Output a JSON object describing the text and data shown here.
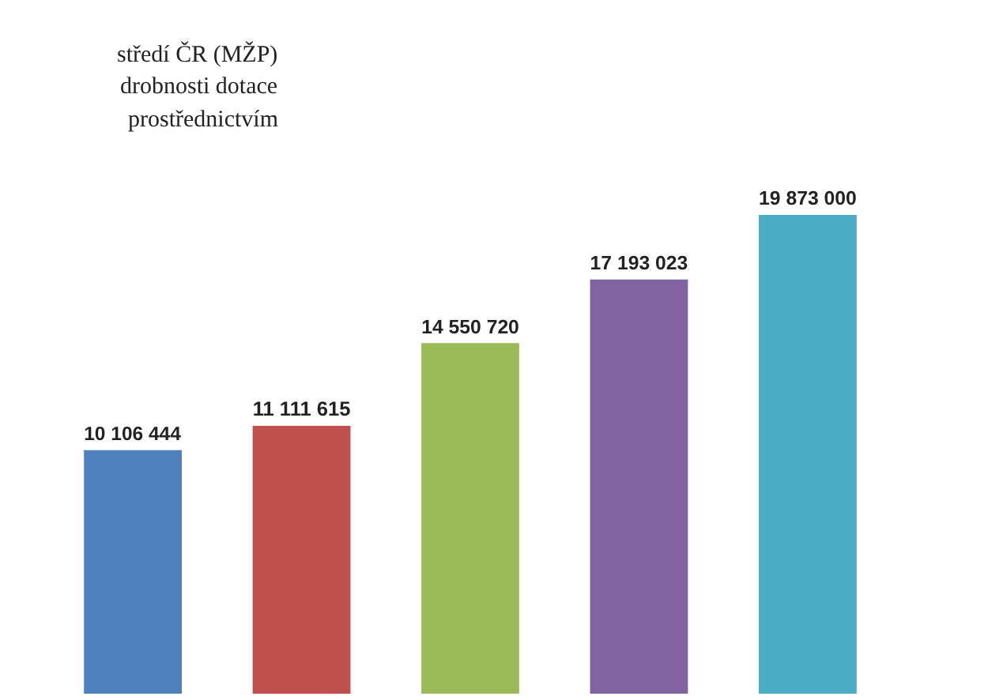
{
  "chart_data": {
    "type": "bar",
    "categories": [
      null,
      null,
      null,
      null,
      null
    ],
    "values": [
      10106444,
      11111615,
      14550720,
      17193023,
      19873000
    ],
    "colors": [
      "#4f81bd",
      "#c0504d",
      "#9bbb59",
      "#8064a2",
      "#4bacc6"
    ],
    "value_labels": [
      "10 106 444",
      "11 111 615",
      "14 550 720",
      "17 193 023",
      "19 873 000"
    ],
    "annotations": [
      "středí ČR (MŽP)",
      "drobnosti dotace",
      "prostřednictvím"
    ],
    "grid": false,
    "legend": false
  }
}
